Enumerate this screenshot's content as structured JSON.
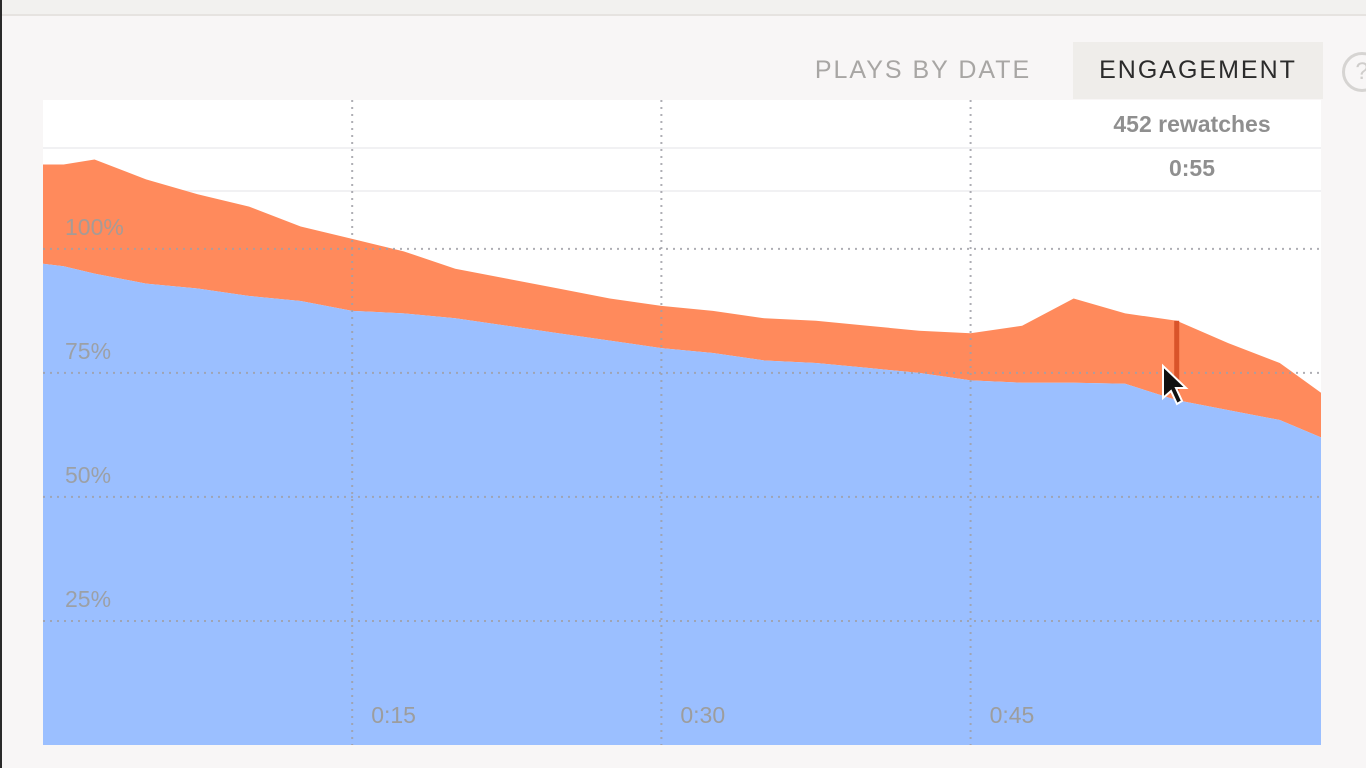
{
  "tabs": {
    "plays_by_date": "PLAYS BY DATE",
    "engagement": "ENGAGEMENT"
  },
  "help_icon": "help-circle-icon",
  "tooltip": {
    "value_label": "452 rewatches",
    "time_label": "0:55"
  },
  "colors": {
    "views": "#9bbfff",
    "rewatches": "#ff8a5c",
    "marker": "#d9542a",
    "grid": "#a0a0a8",
    "tick_text": "#9d9d9d"
  },
  "chart_data": {
    "type": "area",
    "xlim": [
      0,
      62
    ],
    "ylim": [
      0,
      130
    ],
    "y_ticks": [
      {
        "value": 25,
        "label": "25%"
      },
      {
        "value": 50,
        "label": "50%"
      },
      {
        "value": 75,
        "label": "75%"
      },
      {
        "value": 100,
        "label": "100%"
      }
    ],
    "x_ticks": [
      {
        "value": 15,
        "label": "0:15"
      },
      {
        "value": 30,
        "label": "0:30"
      },
      {
        "value": 45,
        "label": "0:45"
      }
    ],
    "x": [
      0,
      1,
      2.5,
      5,
      7.5,
      10,
      12.5,
      15,
      17.5,
      20,
      22.5,
      25,
      27.5,
      30,
      32.5,
      35,
      37.5,
      40,
      42.5,
      45,
      47.5,
      50,
      52.5,
      55,
      57.5,
      60,
      62
    ],
    "series": [
      {
        "values": [
          97,
          96.5,
          95,
          93,
          92,
          90.5,
          89.5,
          87.5,
          87,
          86,
          84.5,
          83,
          81.5,
          80,
          79,
          77.5,
          77,
          76,
          75,
          73.5,
          73,
          73,
          72.8,
          69.5,
          67.5,
          65.5,
          62
        ]
      },
      {
        "values": [
          117,
          117,
          118,
          114,
          111,
          108.5,
          104.5,
          102,
          99.5,
          96,
          94,
          92,
          90,
          88.5,
          87.5,
          86,
          85.5,
          84.5,
          83.5,
          83,
          84.5,
          90,
          87,
          85.5,
          81,
          77,
          71
        ]
      }
    ],
    "marker_x": 55
  }
}
